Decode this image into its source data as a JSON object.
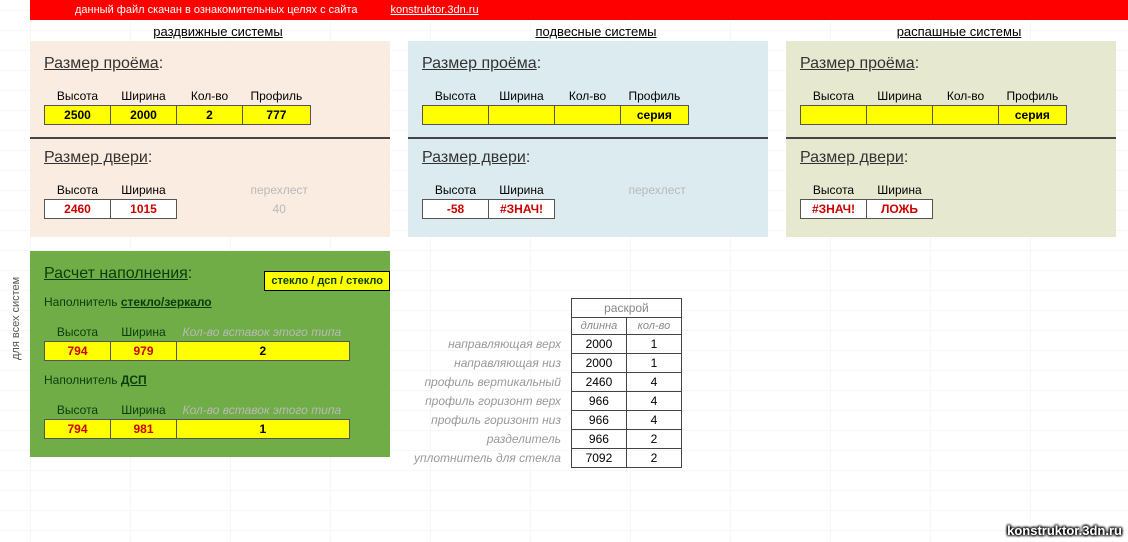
{
  "topbar": {
    "text": "данный файл скачан в ознакомительных целях с сайта",
    "link": "konstruktor.3dn.ru"
  },
  "sidebar_label": "для всех систем",
  "headers": {
    "sliding": "раздвижные системы",
    "suspended": "подвесные системы",
    "swing": "распашные системы"
  },
  "labels": {
    "opening_size": "Размер проёма",
    "door_size": "Размер двери",
    "height": "Высота",
    "width": "Ширина",
    "qty": "Кол-во",
    "profile": "Профиль",
    "overlap": "перехлест",
    "fill_calc": "Расчет наполнения",
    "filler_glass": "Наполнитель",
    "filler_glass_u": "стекло/зеркало",
    "filler_dsp": "Наполнитель",
    "filler_dsp_u": "ДСП",
    "insert_qty": "Кол-во вставок этого типа",
    "series": "серия"
  },
  "sliding": {
    "opening": {
      "height": "2500",
      "width": "2000",
      "qty": "2",
      "profile": "777"
    },
    "door": {
      "height": "2460",
      "width": "1015"
    },
    "overlap": "40"
  },
  "suspended": {
    "opening": {
      "height": "",
      "width": "",
      "qty": "",
      "profile": "серия"
    },
    "door": {
      "height": "-58",
      "width": "#ЗНАЧ!"
    },
    "overlap": ""
  },
  "swing": {
    "opening": {
      "height": "",
      "width": "",
      "qty": "",
      "profile": "серия"
    },
    "door": {
      "height": "#ЗНАЧ!",
      "width": "ЛОЖЬ"
    }
  },
  "fill": {
    "badge": "стекло / дсп / стекло",
    "glass": {
      "height": "794",
      "width": "979",
      "qty": "2"
    },
    "dsp": {
      "height": "794",
      "width": "981",
      "qty": "1"
    }
  },
  "cutting": {
    "title": "раскрой",
    "col_len": "длинна",
    "col_qty": "кол-во",
    "rows": [
      {
        "name": "направляющая верх",
        "len": "2000",
        "qty": "1"
      },
      {
        "name": "направляющая низ",
        "len": "2000",
        "qty": "1"
      },
      {
        "name": "профиль вертикальный",
        "len": "2460",
        "qty": "4"
      },
      {
        "name": "профиль горизонт верх",
        "len": "966",
        "qty": "4"
      },
      {
        "name": "профиль горизонт низ",
        "len": "966",
        "qty": "4"
      },
      {
        "name": "разделитель",
        "len": "966",
        "qty": "2"
      },
      {
        "name": "уплотнитель для стекла",
        "len": "7092",
        "qty": "2"
      }
    ]
  },
  "watermark": "konstruktor.3dn.ru",
  "colors": {
    "yellow": "#ffff00",
    "red_text": "#c00000",
    "panel_peach": "#fbece1",
    "panel_blue": "#dcebf0",
    "panel_olive": "#e6e9cf",
    "panel_green": "#70ad47",
    "topbar": "#ff0000"
  }
}
